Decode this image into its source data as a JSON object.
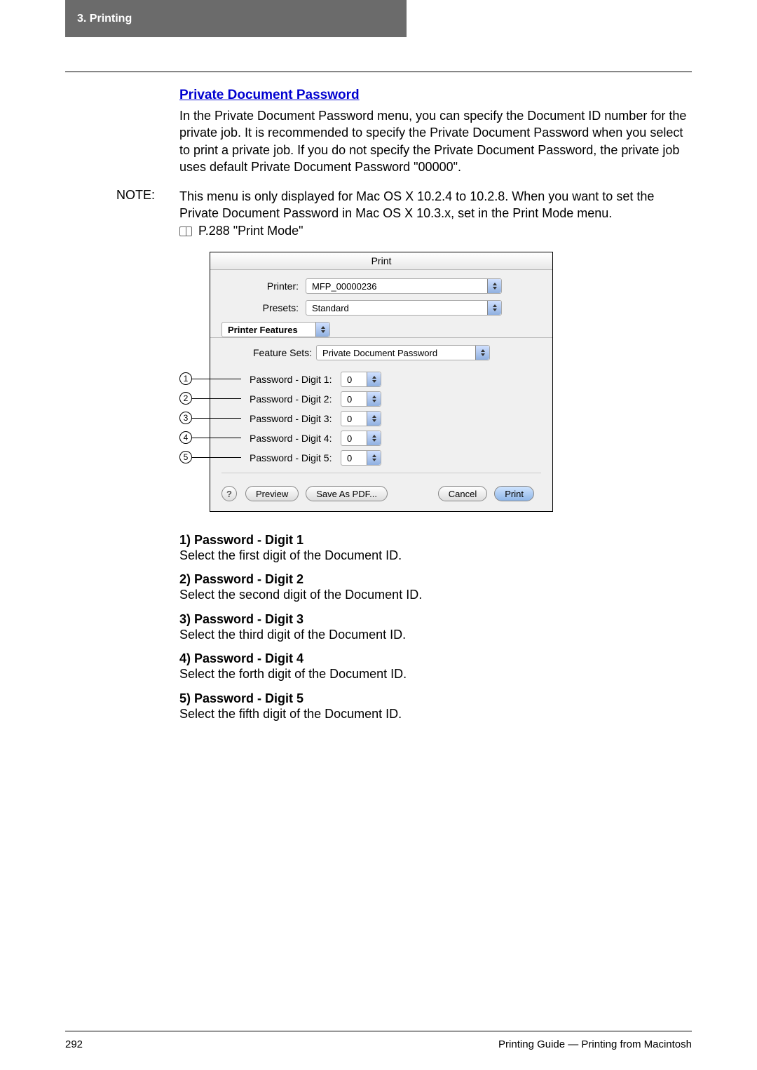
{
  "header": {
    "chapter": "3. Printing"
  },
  "section": {
    "title": "Private Document Password"
  },
  "intro": "In the Private Document Password menu, you can specify the Document ID number for the private job.  It is recommended to specify the Private Document Password when you select to print a private job.  If you do not specify the Private Document Password, the private job uses default Private Document Password \"00000\".",
  "note": {
    "label": "NOTE:",
    "body": "This menu is only displayed for Mac OS X 10.2.4 to 10.2.8.  When you want to set the Private Document Password in Mac OS X 10.3.x, set in the Print Mode menu.",
    "ref": "P.288 \"Print Mode\""
  },
  "dialog": {
    "title": "Print",
    "printer_label": "Printer:",
    "printer_value": "MFP_00000236",
    "presets_label": "Presets:",
    "presets_value": "Standard",
    "tab_value": "Printer Features",
    "fs_label": "Feature Sets:",
    "fs_value": "Private Document Password",
    "pwd_rows": [
      {
        "label": "Password - Digit 1:",
        "value": "0"
      },
      {
        "label": "Password - Digit 2:",
        "value": "0"
      },
      {
        "label": "Password - Digit 3:",
        "value": "0"
      },
      {
        "label": "Password - Digit 4:",
        "value": "0"
      },
      {
        "label": "Password - Digit 5:",
        "value": "0"
      }
    ],
    "help": "?",
    "preview": "Preview",
    "savepdf": "Save As PDF...",
    "cancel": "Cancel",
    "print": "Print"
  },
  "callouts": [
    "1",
    "2",
    "3",
    "4",
    "5"
  ],
  "list_items": [
    {
      "title": "1) Password - Digit 1",
      "body": "Select the first digit of the Document ID."
    },
    {
      "title": "2) Password - Digit 2",
      "body": "Select the second digit of the Document ID."
    },
    {
      "title": "3) Password - Digit 3",
      "body": "Select the third digit of the Document ID."
    },
    {
      "title": "4) Password - Digit 4",
      "body": "Select the forth digit of the Document ID."
    },
    {
      "title": "5) Password - Digit 5",
      "body": "Select the fifth digit of the Document ID."
    }
  ],
  "footer": {
    "page": "292",
    "text": "Printing Guide — Printing from Macintosh"
  },
  "style": {
    "header_bg": "#6b6b6b",
    "link_color": "#0000d0",
    "dialog_bg": "#f0f0f0"
  }
}
